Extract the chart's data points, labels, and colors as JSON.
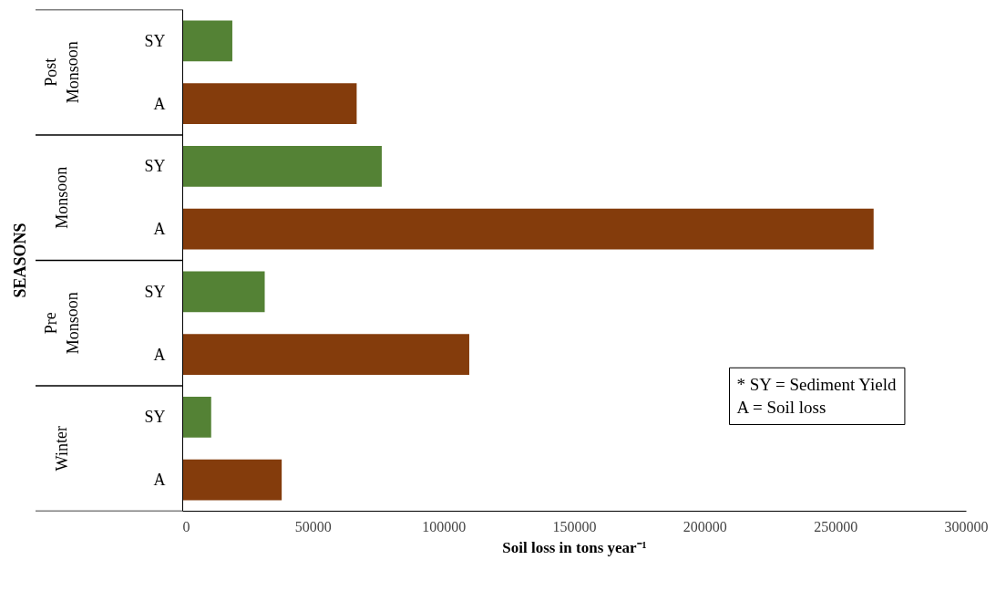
{
  "chart_data": {
    "type": "bar",
    "orientation": "horizontal",
    "xlabel": "Soil loss in tons year⁻¹",
    "categories": [
      "SY",
      "A",
      "SY",
      "A",
      "SY",
      "A",
      "SY",
      "A"
    ],
    "values": [
      19000,
      66600,
      76200,
      264500,
      31400,
      109700,
      10900,
      37900
    ],
    "colors": [
      "#548235",
      "#843c0c",
      "#548235",
      "#843c0c",
      "#548235",
      "#843c0c",
      "#548235",
      "#843c0c"
    ],
    "xlim": [
      0,
      300000
    ],
    "xticks": [
      0,
      50000,
      100000,
      150000,
      200000,
      250000,
      300000
    ],
    "grid": false,
    "annotations": [
      "Post Monsoon",
      "Monsoon",
      "Pre Monsoon",
      "Winter",
      "* SY = Sediment Yield",
      "A = Soil loss",
      "SEASONS"
    ]
  }
}
